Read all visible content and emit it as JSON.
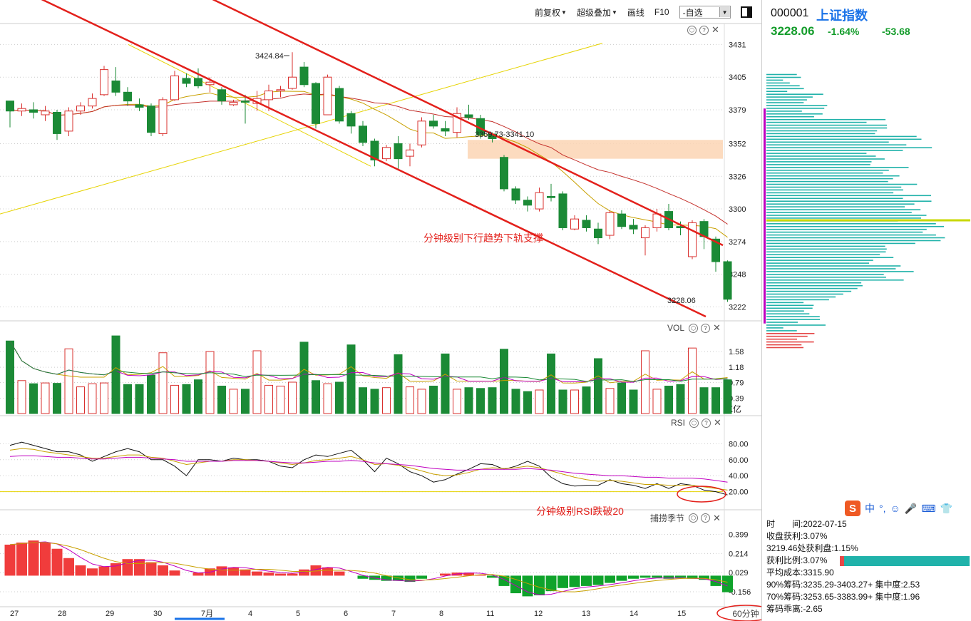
{
  "toolbar": {
    "fuquan": "前复权",
    "overlay": "超级叠加",
    "draw": "画线",
    "f10": "F10",
    "watchlist": "-自选"
  },
  "stock": {
    "code": "000001",
    "name": "上证指数",
    "price": "3228.06",
    "pct": "-1.64%",
    "chg": "-53.68"
  },
  "panels": {
    "vol": "VOL",
    "rsi": "RSI",
    "macd": "捕捞季节"
  },
  "timeframe": "60分钟",
  "colors": {
    "up": "#d9302e",
    "down": "#1b8a36",
    "channel": "#e3201b",
    "zone": "#fcd5b4",
    "trend": "#e6d300"
  },
  "stats": {
    "time_label": "时　　间:",
    "time": "2022-07-15",
    "close_profit": "收盘获利:3.07%",
    "profit_at": "3219.46处获利盘:1.15%",
    "profit_ratio": "获利比例:3.07%",
    "avg_cost": "平均成本:3315.90",
    "chip90": "90%筹码:3235.29-3403.27+ 集中度:2.53",
    "chip70": "70%筹码:3253.65-3383.99+ 集中度:1.96",
    "deviation": "筹码乖离:-2.65"
  },
  "chart_data": {
    "type": "candlestick",
    "dates": [
      "27",
      "28",
      "29",
      "30",
      "7月",
      "4",
      "5",
      "6",
      "7",
      "8",
      "11",
      "12",
      "13",
      "14",
      "15"
    ],
    "annotations": [
      "3424.84",
      "3359.73-3341.10",
      "3228.06",
      "分钟级别下行趋势下轨支撑",
      "分钟级别RSI跌破20"
    ],
    "price_axis": {
      "ticks": [
        3431,
        3405,
        3379,
        3352,
        3326,
        3300,
        3274,
        3248,
        3222
      ],
      "range": [
        3212,
        3446
      ]
    },
    "vol_axis": {
      "ticks": [
        1.58,
        1.18,
        0.79,
        0.39
      ],
      "unit": "X亿",
      "range": [
        0,
        2.0
      ]
    },
    "rsi_axis": {
      "ticks": [
        80.0,
        60.0,
        40.0,
        20.0
      ],
      "range": [
        0,
        100
      ]
    },
    "macd_axis": {
      "ticks": [
        0.399,
        0.214,
        0.029,
        -0.156
      ],
      "range": [
        -0.28,
        0.52
      ]
    },
    "candles": [
      [
        3386,
        3378,
        3380,
        3365
      ],
      [
        3378,
        3380,
        3384,
        3374
      ],
      [
        3379,
        3377,
        3385,
        3372
      ],
      [
        3375,
        3378,
        3382,
        3370
      ],
      [
        3377,
        3360,
        3379,
        3355
      ],
      [
        3362,
        3378,
        3381,
        3358
      ],
      [
        3378,
        3382,
        3385,
        3375
      ],
      [
        3382,
        3388,
        3392,
        3380
      ],
      [
        3391,
        3411,
        3414,
        3390
      ],
      [
        3402,
        3393,
        3413,
        3390
      ],
      [
        3393,
        3386,
        3397,
        3382
      ],
      [
        3383,
        3381,
        3388,
        3378
      ],
      [
        3382,
        3361,
        3384,
        3358
      ],
      [
        3360,
        3387,
        3389,
        3358
      ],
      [
        3387,
        3406,
        3410,
        3386
      ],
      [
        3404,
        3400,
        3408,
        3397
      ],
      [
        3404,
        3398,
        3412,
        3396
      ],
      [
        3399,
        3401,
        3405,
        3393
      ],
      [
        3395,
        3386,
        3397,
        3383
      ],
      [
        3383,
        3385,
        3387,
        3382
      ],
      [
        3386,
        3385,
        3391,
        3368
      ],
      [
        3384,
        3388,
        3394,
        3378
      ],
      [
        3387,
        3394,
        3399,
        3378
      ],
      [
        3394,
        3395,
        3398,
        3389
      ],
      [
        3396,
        3405,
        3424.84,
        3395
      ],
      [
        3413,
        3399,
        3417,
        3397
      ],
      [
        3400,
        3368,
        3401,
        3364
      ],
      [
        3375,
        3405,
        3407,
        3375
      ],
      [
        3396,
        3370,
        3398,
        3368
      ],
      [
        3376,
        3366,
        3378,
        3360
      ],
      [
        3366,
        3353,
        3370,
        3350
      ],
      [
        3354,
        3339,
        3356,
        3334
      ],
      [
        3340,
        3349,
        3351,
        3338
      ],
      [
        3352,
        3340,
        3358,
        3331
      ],
      [
        3342,
        3347,
        3352,
        3334
      ],
      [
        3351,
        3370,
        3373,
        3349
      ],
      [
        3370,
        3366,
        3375,
        3364
      ],
      [
        3364,
        3362,
        3370,
        3358
      ],
      [
        3361,
        3376,
        3381,
        3357
      ],
      [
        3375,
        3373,
        3383,
        3371
      ],
      [
        3372,
        3359,
        3375,
        3356
      ],
      [
        3359.73,
        3356,
        3361,
        3353
      ],
      [
        3341.1,
        3316,
        3343,
        3314
      ],
      [
        3316,
        3307,
        3318,
        3304
      ],
      [
        3307,
        3303,
        3310,
        3298
      ],
      [
        3300,
        3313,
        3317,
        3298
      ],
      [
        3310,
        3309,
        3320,
        3306
      ],
      [
        3312,
        3285,
        3314,
        3283
      ],
      [
        3284,
        3292,
        3295,
        3283
      ],
      [
        3291,
        3285,
        3295,
        3282
      ],
      [
        3284,
        3277,
        3289,
        3272
      ],
      [
        3279,
        3297,
        3299,
        3276
      ],
      [
        3296,
        3286,
        3299,
        3284
      ],
      [
        3287,
        3284,
        3292,
        3280
      ],
      [
        3277,
        3285,
        3287,
        3263
      ],
      [
        3285,
        3296,
        3300,
        3282
      ],
      [
        3298,
        3285,
        3304,
        3283
      ],
      [
        3286,
        3285,
        3290,
        3279
      ],
      [
        3262,
        3289,
        3291,
        3260
      ],
      [
        3290,
        3278,
        3292,
        3268
      ],
      [
        3276,
        3258,
        3278,
        3250
      ],
      [
        3258,
        3228.06,
        3259,
        3226
      ]
    ],
    "vol": [
      1.85,
      0.84,
      0.76,
      0.78,
      0.77,
      1.65,
      0.68,
      0.76,
      0.78,
      1.98,
      0.74,
      0.74,
      0.98,
      1.55,
      0.72,
      0.74,
      0.86,
      1.58,
      0.7,
      0.62,
      0.62,
      1.6,
      0.72,
      0.7,
      0.8,
      1.82,
      0.84,
      0.76,
      0.8,
      1.75,
      0.66,
      0.62,
      0.66,
      1.5,
      0.68,
      0.62,
      0.7,
      1.52,
      0.62,
      0.66,
      0.64,
      0.66,
      1.64,
      0.62,
      0.56,
      0.6,
      1.52,
      0.6,
      0.6,
      0.68,
      1.4,
      0.64,
      0.78,
      0.6,
      1.6,
      0.62,
      0.7,
      0.74,
      1.67,
      0.66,
      0.66,
      0.86
    ],
    "rsi1": [
      78,
      82,
      78,
      74,
      70,
      70,
      66,
      58,
      64,
      70,
      74,
      70,
      60,
      60,
      52,
      40,
      60,
      60,
      58,
      62,
      60,
      60,
      58,
      52,
      50,
      60,
      66,
      64,
      68,
      72,
      60,
      45,
      62,
      55,
      45,
      40,
      32,
      35,
      42,
      48,
      55,
      54,
      48,
      52,
      58,
      52,
      38,
      30,
      27,
      28,
      28,
      35,
      30,
      28,
      24,
      30,
      24,
      30,
      28,
      22,
      20,
      16
    ],
    "rsi2": [
      72,
      74,
      73,
      70,
      68,
      66,
      64,
      62,
      62,
      64,
      66,
      66,
      63,
      62,
      58,
      54,
      56,
      58,
      58,
      60,
      60,
      59,
      58,
      56,
      54,
      56,
      59,
      60,
      62,
      64,
      60,
      54,
      55,
      53,
      50,
      46,
      42,
      40,
      41,
      44,
      48,
      50,
      49,
      50,
      52,
      50,
      46,
      42,
      38,
      35,
      33,
      34,
      33,
      31,
      29,
      29,
      28,
      28,
      28,
      26,
      24,
      22
    ],
    "rsi3": [
      64,
      65,
      65,
      64,
      63,
      63,
      62,
      61,
      61,
      62,
      63,
      63,
      62,
      61,
      60,
      58,
      58,
      58,
      58,
      59,
      59,
      59,
      58,
      57,
      56,
      56,
      57,
      58,
      58,
      59,
      58,
      56,
      55,
      54,
      53,
      51,
      49,
      48,
      47,
      47,
      48,
      48,
      48,
      48,
      49,
      48,
      47,
      45,
      43,
      42,
      41,
      40,
      40,
      39,
      38,
      38,
      37,
      37,
      37,
      36,
      34,
      32
    ],
    "macd": [
      0.3,
      0.32,
      0.34,
      0.32,
      0.26,
      0.17,
      0.1,
      0.07,
      0.09,
      0.12,
      0.16,
      0.16,
      0.13,
      0.1,
      0.05,
      0.0,
      0.03,
      0.07,
      0.09,
      0.08,
      0.06,
      0.04,
      0.03,
      0.02,
      0.02,
      0.06,
      0.1,
      0.08,
      0.04,
      0.0,
      -0.03,
      -0.04,
      -0.05,
      -0.05,
      -0.06,
      -0.03,
      0.0,
      0.02,
      0.03,
      0.03,
      0.01,
      -0.02,
      -0.1,
      -0.17,
      -0.2,
      -0.19,
      -0.15,
      -0.12,
      -0.11,
      -0.1,
      -0.09,
      -0.07,
      -0.05,
      -0.03,
      -0.02,
      -0.02,
      -0.03,
      -0.02,
      -0.03,
      -0.04,
      -0.1,
      -0.16
    ],
    "chip_profile": "horizontal distribution bars (teal above price, red below price)"
  }
}
